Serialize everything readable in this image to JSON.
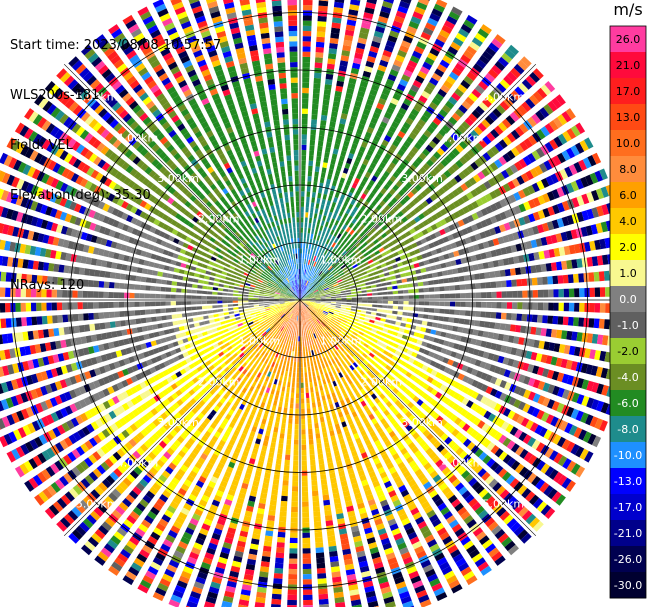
{
  "info": {
    "start_time": "Start time: 2023/08/08 10:57:57",
    "instrument": "WLS200s-181",
    "field": "Field: VEL",
    "elevation": "Elevation(deg): 35.30",
    "nrays": "NRays: 120"
  },
  "colorbar": {
    "unit": "m/s",
    "ticks": [
      "26.0",
      "21.0",
      "17.0",
      "13.0",
      "10.0",
      "8.0",
      "6.0",
      "4.0",
      "2.0",
      "1.0",
      "0.0",
      "-1.0",
      "-2.0",
      "-4.0",
      "-6.0",
      "-8.0",
      "-10.0",
      "-13.0",
      "-17.0",
      "-21.0",
      "-26.0",
      "-30.0"
    ],
    "colors": [
      "#ff3ca0",
      "#ff0a3c",
      "#ff1e1e",
      "#ff4a14",
      "#ff6e1e",
      "#ff8c3c",
      "#ffa000",
      "#ffc800",
      "#ffff00",
      "#f8f890",
      "#808080",
      "#606060",
      "#9acd32",
      "#6b8e23",
      "#228b22",
      "#1e8c8c",
      "#1e90ff",
      "#0000ff",
      "#0000cd",
      "#00008b",
      "#000050",
      "#000030"
    ]
  },
  "chart_data": {
    "type": "heatmap",
    "projection": "polar-ppi",
    "field": "VEL",
    "units": "m/s",
    "nrays": 120,
    "elevation_deg": 35.3,
    "range_rings_km": [
      1.0,
      2.0,
      3.0,
      4.0,
      5.0
    ],
    "ring_labels": [
      "1.00km",
      "2.00km",
      "3.00km",
      "4.00km",
      "5.00km"
    ],
    "max_range_km": 5.8,
    "color_levels": [
      -30,
      -26,
      -21,
      -17,
      -13,
      -10,
      -8,
      -6,
      -4,
      -2,
      -1,
      0,
      1,
      2,
      4,
      6,
      8,
      10,
      13,
      17,
      21,
      26
    ],
    "velocity_pattern": {
      "north_sector": "approaching, -2 to -8 m/s",
      "south_sector": "receding, +2 to +17 m/s",
      "center_north": "-8 to -10 m/s",
      "center_south": "+13 to +17 m/s",
      "beyond_km": 4.3,
      "beyond_note": "noise"
    }
  }
}
